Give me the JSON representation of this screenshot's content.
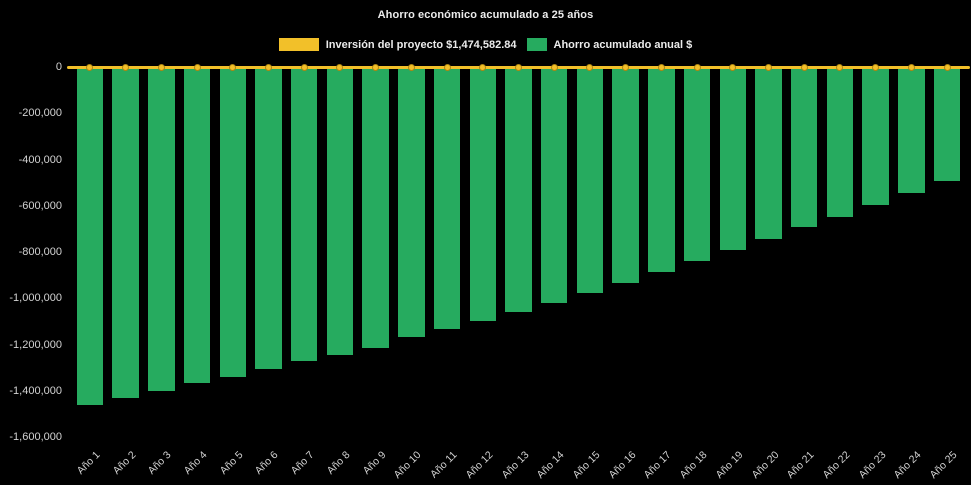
{
  "chart_data": {
    "type": "bar",
    "title": "Ahorro económico acumulado a 25 años",
    "background": "#000000",
    "grid": false,
    "legend_position": "top",
    "categories": [
      "Año 1",
      "Año 2",
      "Año 3",
      "Año 4",
      "Año 5",
      "Año 6",
      "Año 7",
      "Año 8",
      "Año 9",
      "Año 10",
      "Año 11",
      "Año 12",
      "Año 13",
      "Año 14",
      "Año 15",
      "Año 16",
      "Año 17",
      "Año 18",
      "Año 19",
      "Año 20",
      "Año 21",
      "Año 22",
      "Año 23",
      "Año 24",
      "Año 25"
    ],
    "series": [
      {
        "name": "Inversión del proyecto $1,474,582.84",
        "type": "line",
        "color": "#f2c029",
        "values": [
          0,
          0,
          0,
          0,
          0,
          0,
          0,
          0,
          0,
          0,
          0,
          0,
          0,
          0,
          0,
          0,
          0,
          0,
          0,
          0,
          0,
          0,
          0,
          0,
          0
        ]
      },
      {
        "name": "Ahorro acumulado anual $",
        "type": "bar",
        "color": "#26ab5f",
        "values": [
          -1460000,
          -1432000,
          -1402000,
          -1368000,
          -1340000,
          -1308000,
          -1272000,
          -1244000,
          -1214000,
          -1166000,
          -1132000,
          -1098000,
          -1058000,
          -1020000,
          -976000,
          -934000,
          -886000,
          -840000,
          -792000,
          -744000,
          -694000,
          -648000,
          -596000,
          -546000,
          -494000
        ]
      }
    ],
    "xlabel": "",
    "ylabel": "",
    "ylim": [
      -1600000,
      0
    ],
    "yticks": [
      0,
      -200000,
      -400000,
      -600000,
      -800000,
      -1000000,
      -1200000,
      -1400000,
      -1600000
    ],
    "ytick_labels": [
      "0",
      "-200,000",
      "-400,000",
      "-600,000",
      "-800,000",
      "-1,000,000",
      "-1,200,000",
      "-1,400,000",
      "-1,600,000"
    ]
  }
}
